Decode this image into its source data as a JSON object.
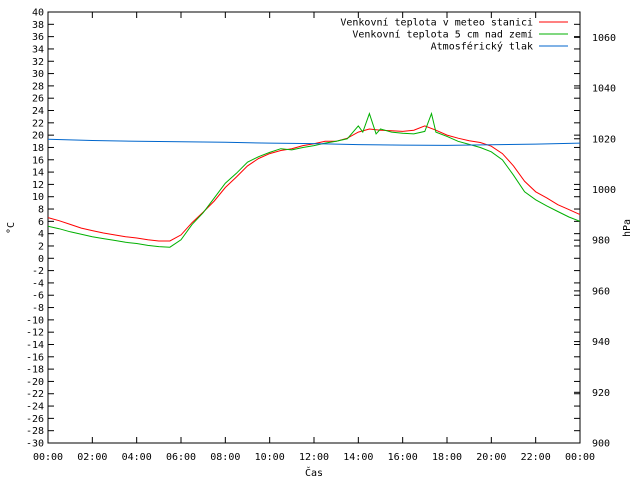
{
  "chart_data": {
    "type": "line",
    "xlabel": "Čas",
    "ylabel_left": "°C",
    "ylabel_right": "hPa",
    "grid": false,
    "legend_position": "top-right",
    "x_ticks": [
      "00:00",
      "02:00",
      "04:00",
      "06:00",
      "08:00",
      "10:00",
      "12:00",
      "14:00",
      "16:00",
      "18:00",
      "20:00",
      "22:00",
      "00:00"
    ],
    "xlim": [
      0,
      24
    ],
    "ylim_left": [
      -30,
      40
    ],
    "y_ticks_left": [
      40,
      38,
      36,
      34,
      32,
      30,
      28,
      26,
      24,
      22,
      20,
      18,
      16,
      14,
      12,
      10,
      8,
      6,
      4,
      2,
      0,
      -2,
      -4,
      -6,
      -8,
      -10,
      -12,
      -14,
      -16,
      -18,
      -20,
      -22,
      -24,
      -26,
      -28,
      -30
    ],
    "ylim_right": [
      900,
      1070
    ],
    "y_ticks_right": [
      1060,
      1040,
      1020,
      1000,
      980,
      960,
      940,
      920,
      900
    ],
    "series": [
      {
        "name": "Venkovní teplota v meteo stanici",
        "axis": "left",
        "color": "#ff0000",
        "x": [
          0,
          0.5,
          1,
          1.5,
          2,
          2.5,
          3,
          3.5,
          4,
          4.5,
          5,
          5.5,
          6,
          6.5,
          7,
          7.5,
          8,
          8.5,
          9,
          9.5,
          10,
          10.5,
          11,
          11.5,
          12,
          12.5,
          13,
          13.5,
          14,
          14.5,
          15,
          15.5,
          16,
          16.5,
          17,
          17.5,
          18,
          18.5,
          19,
          19.5,
          20,
          20.5,
          21,
          21.5,
          22,
          22.5,
          23,
          23.5,
          24
        ],
        "values": [
          6.6,
          6.1,
          5.5,
          4.9,
          4.5,
          4.1,
          3.8,
          3.5,
          3.3,
          3.0,
          2.8,
          2.8,
          3.8,
          5.8,
          7.5,
          9.3,
          11.5,
          13.2,
          15.0,
          16.2,
          17.0,
          17.5,
          17.8,
          18.3,
          18.6,
          19.0,
          19.0,
          19.5,
          20.5,
          21.0,
          20.8,
          20.7,
          20.6,
          20.8,
          21.5,
          20.8,
          20.0,
          19.5,
          19.1,
          18.8,
          18.2,
          17.0,
          15.0,
          12.5,
          10.8,
          9.8,
          8.7,
          7.9,
          7.1
        ]
      },
      {
        "name": "Venkovní teplota 5 cm nad zemí",
        "axis": "left",
        "color": "#00b000",
        "x": [
          0,
          0.5,
          1,
          1.5,
          2,
          2.5,
          3,
          3.5,
          4,
          4.5,
          5,
          5.5,
          6,
          6.5,
          7,
          7.5,
          8,
          8.5,
          9,
          9.5,
          10,
          10.5,
          11,
          11.5,
          12,
          12.5,
          13,
          13.5,
          14,
          14.2,
          14.5,
          14.8,
          15,
          15.5,
          16,
          16.5,
          17,
          17.3,
          17.5,
          18,
          18.5,
          19,
          19.5,
          20,
          20.5,
          21,
          21.5,
          22,
          22.5,
          23,
          23.5,
          24
        ],
        "values": [
          5.2,
          4.8,
          4.3,
          3.9,
          3.5,
          3.2,
          2.9,
          2.6,
          2.4,
          2.1,
          1.9,
          1.8,
          3.0,
          5.5,
          7.4,
          9.8,
          12.2,
          13.8,
          15.6,
          16.5,
          17.2,
          17.8,
          17.6,
          18.0,
          18.3,
          18.7,
          19.0,
          19.4,
          21.5,
          20.5,
          23.5,
          20.2,
          21.0,
          20.5,
          20.3,
          20.2,
          20.6,
          23.5,
          20.5,
          19.8,
          19.0,
          18.5,
          18.0,
          17.3,
          16.0,
          13.5,
          10.8,
          9.5,
          8.5,
          7.6,
          6.7,
          6.0
        ]
      },
      {
        "name": "Atmosférický tlak",
        "axis": "right",
        "color": "#0066cc",
        "x": [
          0,
          2,
          4,
          6,
          8,
          10,
          12,
          14,
          16,
          18,
          20,
          22,
          24
        ],
        "values": [
          1019.8,
          1019.3,
          1019.0,
          1018.8,
          1018.6,
          1018.3,
          1018.1,
          1017.7,
          1017.5,
          1017.4,
          1017.6,
          1017.9,
          1018.3
        ]
      }
    ]
  }
}
